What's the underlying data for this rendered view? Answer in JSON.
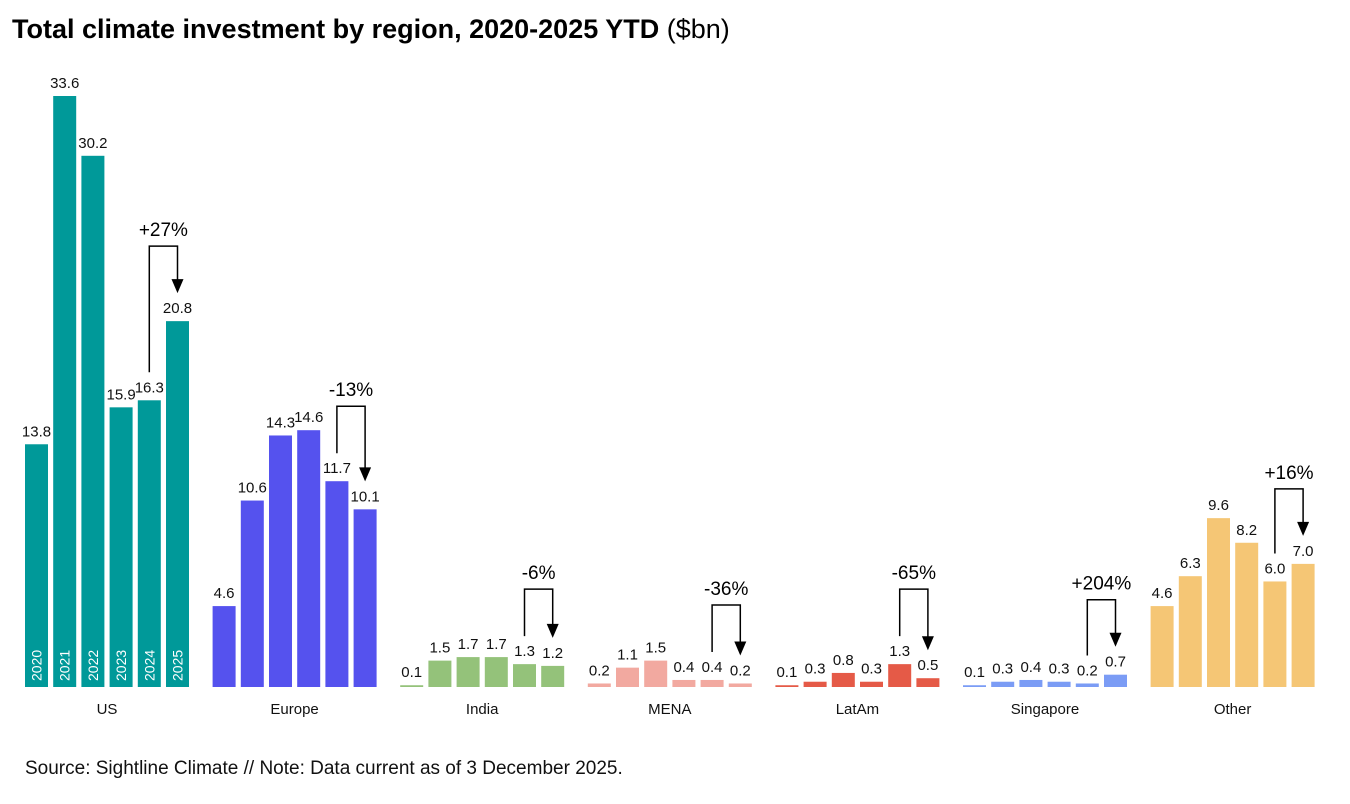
{
  "chart_data": {
    "type": "bar",
    "title": "Total climate investment by region, 2020-2025 YTD",
    "unit": "($bn)",
    "years": [
      "2020",
      "2021",
      "2022",
      "2023",
      "2024",
      "2025"
    ],
    "ylim": [
      0,
      34
    ],
    "grid": false,
    "groups": [
      {
        "name": "US",
        "color": "#009999",
        "values": [
          13.8,
          33.6,
          30.2,
          15.9,
          16.3,
          20.8
        ],
        "change": "+27%"
      },
      {
        "name": "Europe",
        "color": "#5552EE",
        "values": [
          4.6,
          10.6,
          14.3,
          14.6,
          11.7,
          10.1
        ],
        "change": "-13%"
      },
      {
        "name": "India",
        "color": "#94C27A",
        "values": [
          0.1,
          1.5,
          1.7,
          1.7,
          1.3,
          1.2
        ],
        "change": "-6%"
      },
      {
        "name": "MENA",
        "color": "#F2A9A0",
        "values": [
          0.2,
          1.1,
          1.5,
          0.4,
          0.4,
          0.2
        ],
        "change": "-36%"
      },
      {
        "name": "LatAm",
        "color": "#E55A47",
        "values": [
          0.1,
          0.3,
          0.8,
          0.3,
          1.3,
          0.5
        ],
        "change": "-65%"
      },
      {
        "name": "Singapore",
        "color": "#7B9CF5",
        "values": [
          0.1,
          0.3,
          0.4,
          0.3,
          0.2,
          0.7
        ],
        "change": "+204%"
      },
      {
        "name": "Other",
        "color": "#F5C675",
        "values": [
          4.6,
          6.3,
          9.6,
          8.2,
          6.0,
          7.0
        ],
        "change": "+16%"
      }
    ]
  },
  "source": "Source: Sightline Climate  //  Note: Data current as of 3 December 2025."
}
